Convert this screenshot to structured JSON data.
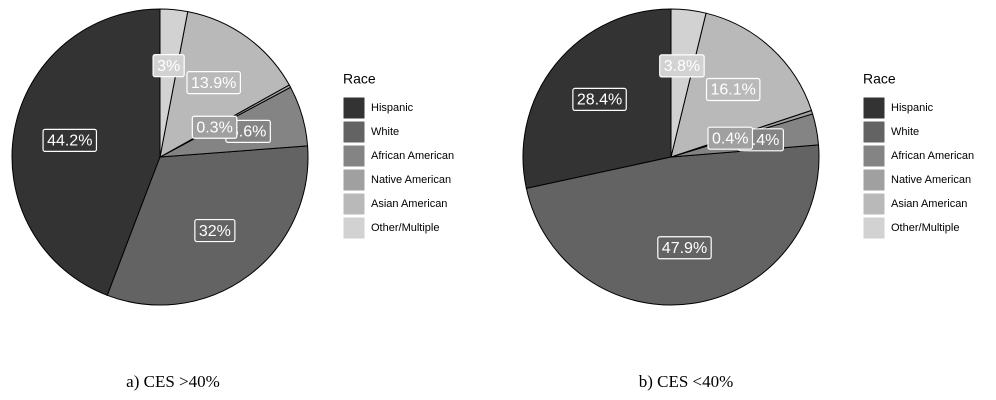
{
  "chart_data": [
    {
      "type": "pie",
      "legend_title": "Race",
      "caption": "a)    CES >40%",
      "categories": [
        "Hispanic",
        "White",
        "African American",
        "Native American",
        "Asian American",
        "Other/Multiple"
      ],
      "values": [
        44.2,
        32,
        6.6,
        0.3,
        13.9,
        3
      ],
      "value_labels": [
        "44.2%",
        "32%",
        "6.6%",
        "0.3%",
        "13.9%",
        "3%"
      ],
      "colors": [
        "#333333",
        "#636363",
        "#848484",
        "#a0a0a0",
        "#b9b9b9",
        "#d2d2d2"
      ]
    },
    {
      "type": "pie",
      "legend_title": "Race",
      "caption": "b) CES <40%",
      "categories": [
        "Hispanic",
        "White",
        "African American",
        "Native American",
        "Asian American",
        "Other/Multiple"
      ],
      "values": [
        28.4,
        47.9,
        3.4,
        0.4,
        16.1,
        3.8
      ],
      "value_labels": [
        "28.4%",
        "47.9%",
        "3.4%",
        "0.4%",
        "16.1%",
        "3.8%"
      ],
      "colors": [
        "#333333",
        "#636363",
        "#848484",
        "#a0a0a0",
        "#b9b9b9",
        "#d2d2d2"
      ]
    }
  ]
}
